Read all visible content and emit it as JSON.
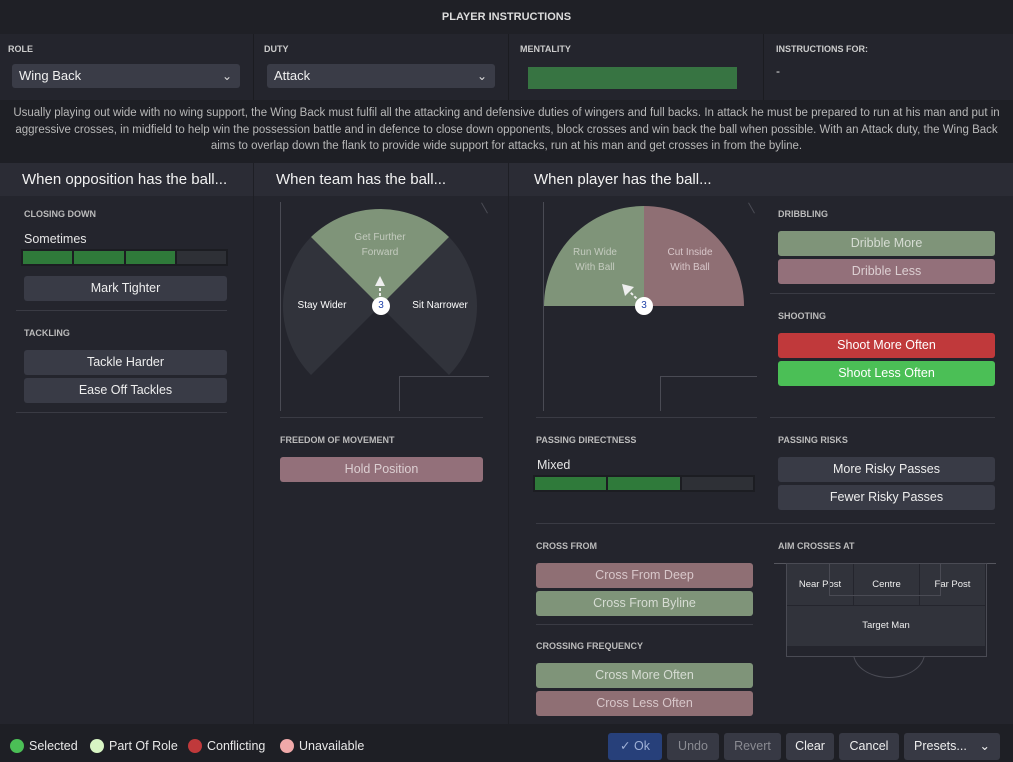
{
  "title": "PLAYER INSTRUCTIONS",
  "top": {
    "role_label": "ROLE",
    "role_value": "Wing Back",
    "duty_label": "DUTY",
    "duty_value": "Attack",
    "mentality_label": "MENTALITY",
    "instructions_for_label": "INSTRUCTIONS FOR:",
    "instructions_for_value": "-"
  },
  "description": "Usually playing out wide with no wing support, the Wing Back must fulfil all the attacking and defensive duties of wingers and full backs. In attack he must be prepared to run at his man and put in aggressive crosses, in midfield to help win the possession battle and in defence to close down opponents, block crosses and win back the ball when possible. With an Attack duty, the Wing Back aims to overlap down the flank to provide wide support for attacks, run at his man and get crosses in from the byline.",
  "sections": {
    "opposition": "When opposition has the ball...",
    "team": "When team has the ball...",
    "player": "When player has the ball..."
  },
  "opposition": {
    "closing_down_label": "CLOSING DOWN",
    "closing_down_value": "Sometimes",
    "closing_down_level": 3,
    "closing_down_steps": 4,
    "mark_tighter": "Mark Tighter",
    "tackling_label": "TACKLING",
    "tackle_harder": "Tackle Harder",
    "ease_off": "Ease Off Tackles"
  },
  "team": {
    "get_further_forward": "Get Further Forward",
    "stay_wider": "Stay Wider",
    "sit_narrower": "Sit Narrower",
    "player_number": "3",
    "freedom_label": "FREEDOM OF MOVEMENT",
    "hold_position": "Hold Position"
  },
  "player": {
    "run_wide": "Run Wide With Ball",
    "cut_inside": "Cut Inside With Ball",
    "player_number": "3",
    "dribbling_label": "DRIBBLING",
    "dribble_more": "Dribble More",
    "dribble_less": "Dribble Less",
    "shooting_label": "SHOOTING",
    "shoot_more": "Shoot More Often",
    "shoot_less": "Shoot Less Often",
    "passing_directness_label": "PASSING DIRECTNESS",
    "passing_directness_value": "Mixed",
    "passing_directness_level": 2,
    "passing_directness_steps": 3,
    "passing_risks_label": "PASSING RISKS",
    "more_risky": "More Risky Passes",
    "fewer_risky": "Fewer Risky Passes",
    "cross_from_label": "CROSS FROM",
    "cross_deep": "Cross From Deep",
    "cross_byline": "Cross From Byline",
    "crossing_freq_label": "CROSSING FREQUENCY",
    "cross_more": "Cross More Often",
    "cross_less": "Cross Less Often",
    "aim_label": "AIM CROSSES AT",
    "near_post": "Near Post",
    "centre": "Centre",
    "far_post": "Far Post",
    "target_man": "Target Man"
  },
  "legend": [
    {
      "label": "Selected",
      "color": "#4bbf56"
    },
    {
      "label": "Part Of Role",
      "color": "#d8f5c4"
    },
    {
      "label": "Conflicting",
      "color": "#c0393b"
    },
    {
      "label": "Unavailable",
      "color": "#f0a9a9"
    }
  ],
  "footer": {
    "ok": "Ok",
    "undo": "Undo",
    "revert": "Revert",
    "clear": "Clear",
    "cancel": "Cancel",
    "presets": "Presets..."
  }
}
